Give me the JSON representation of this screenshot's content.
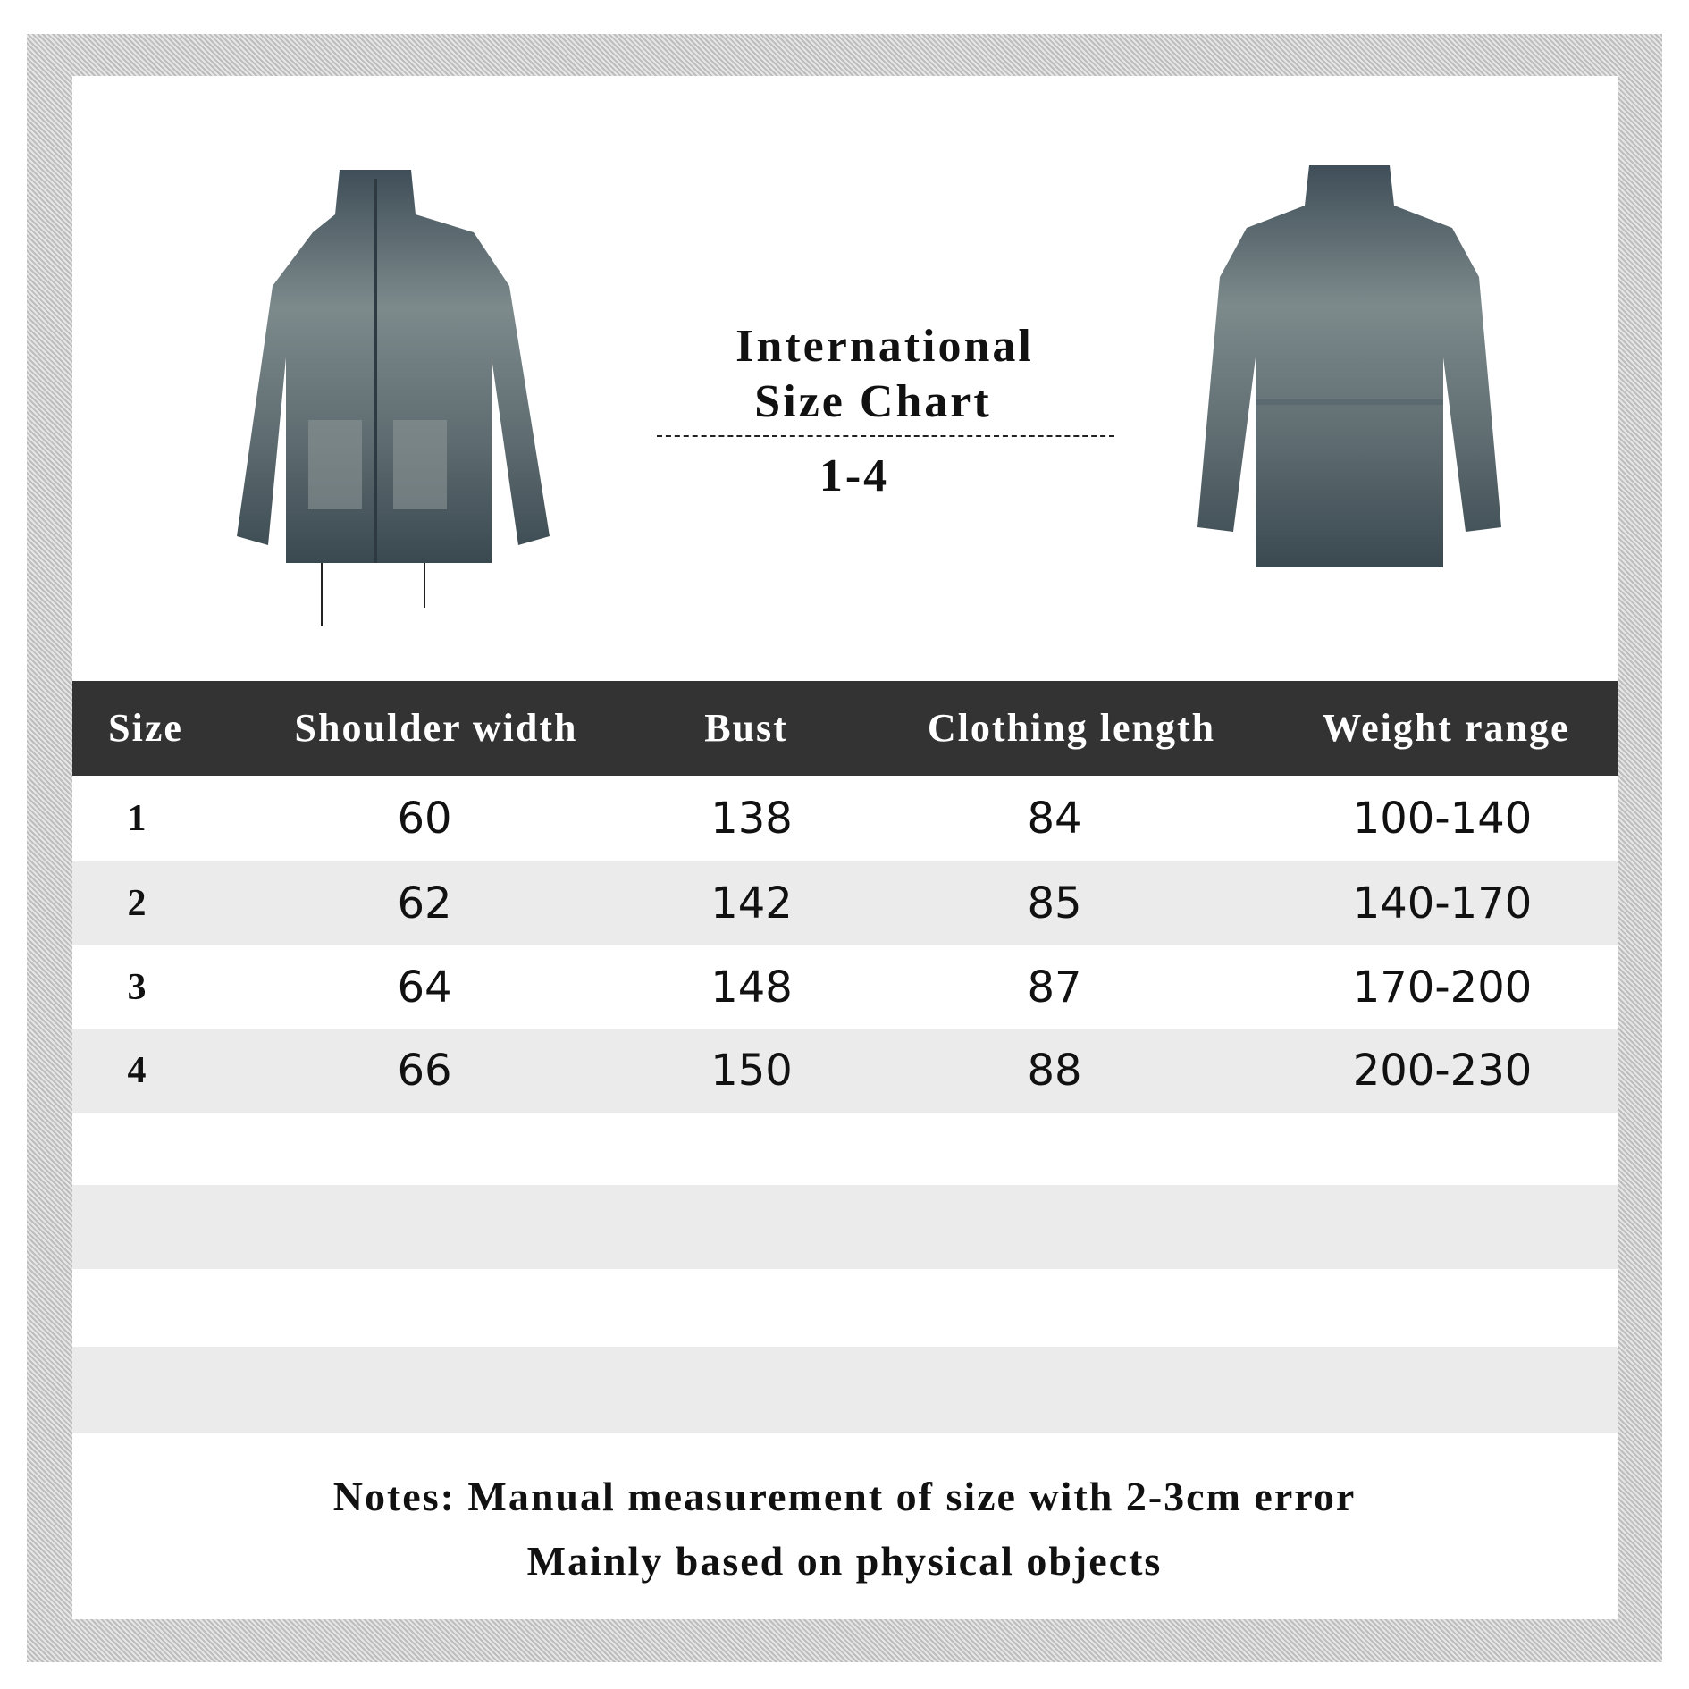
{
  "title": {
    "line1": "International",
    "line2": "Size Chart",
    "range": "1-4"
  },
  "table": {
    "headers": [
      "Size",
      "Shoulder width",
      "Bust",
      "Clothing length",
      "Weight range"
    ],
    "rows": [
      [
        "1",
        "60",
        "138",
        "84",
        "100-140"
      ],
      [
        "2",
        "62",
        "142",
        "85",
        "140-170"
      ],
      [
        "3",
        "64",
        "148",
        "87",
        "170-200"
      ],
      [
        "4",
        "66",
        "150",
        "88",
        "200-230"
      ]
    ]
  },
  "notes": {
    "line1": "Notes:  Manual measurement of size with 2-3cm error",
    "line2": "Mainly based on physical objects"
  },
  "colors": {
    "header_bg": "#333333",
    "stripe": "#ebebeb",
    "denim": "#4b5a63"
  }
}
